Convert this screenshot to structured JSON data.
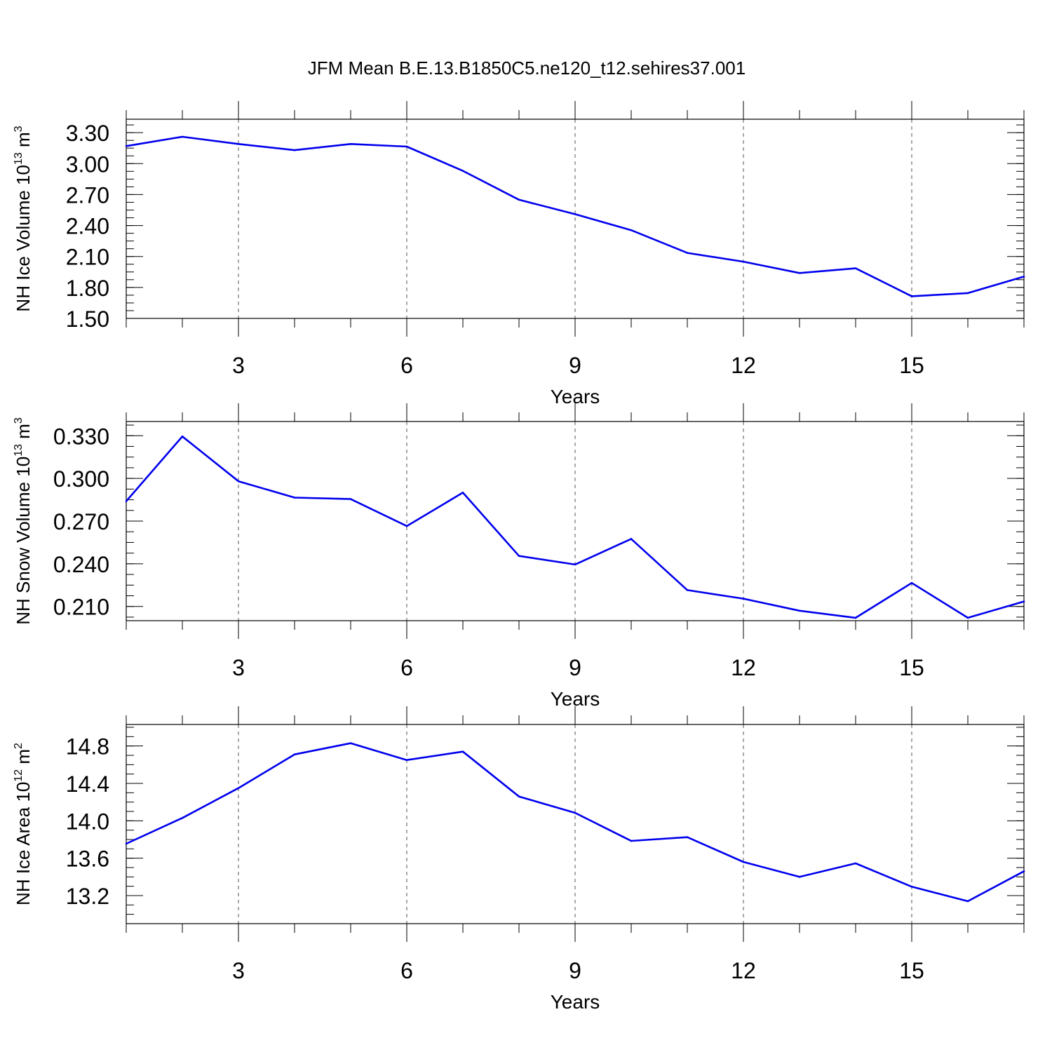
{
  "chart_data": {
    "title": "JFM Mean B.E.13.B1850C5.ne120_t12.sehires37.001",
    "panels": [
      {
        "type": "line",
        "xlabel": "Years",
        "ylabel": {
          "main": "NH Ice Volume 10",
          "exp": "13",
          "unit": " m",
          "unit_exp": "3"
        },
        "xlim": [
          1,
          17
        ],
        "x_ticks": [
          3,
          6,
          9,
          12,
          15
        ],
        "ylim": [
          1.5,
          3.43
        ],
        "y_ticks": [
          "1.50",
          "1.80",
          "2.10",
          "2.40",
          "2.70",
          "3.00",
          "3.30"
        ],
        "y_minor_step": 0.075,
        "grid": "vertical dashed at major x ticks",
        "color": "#0000ee",
        "x": [
          1,
          2,
          3,
          4,
          5,
          6,
          7,
          8,
          9,
          10,
          11,
          12,
          13,
          14,
          15,
          16,
          17
        ],
        "y": [
          3.17,
          3.26,
          3.19,
          3.13,
          3.19,
          3.165,
          2.93,
          2.65,
          2.51,
          2.355,
          2.135,
          2.05,
          1.94,
          1.985,
          1.715,
          1.745,
          1.905
        ]
      },
      {
        "type": "line",
        "xlabel": "Years",
        "ylabel": {
          "main": "NH Snow Volume 10",
          "exp": "13",
          "unit": " m",
          "unit_exp": "3"
        },
        "xlim": [
          1,
          17
        ],
        "x_ticks": [
          3,
          6,
          9,
          12,
          15
        ],
        "ylim": [
          0.2,
          0.34
        ],
        "y_ticks": [
          "0.210",
          "0.240",
          "0.270",
          "0.300",
          "0.330"
        ],
        "y_minor_step": 0.0075,
        "grid": "vertical dashed at major x ticks",
        "color": "#0000ee",
        "x": [
          1,
          2,
          3,
          4,
          5,
          6,
          7,
          8,
          9,
          10,
          11,
          12,
          13,
          14,
          15,
          16,
          17
        ],
        "y": [
          0.284,
          0.3295,
          0.298,
          0.2865,
          0.2855,
          0.2665,
          0.29,
          0.2455,
          0.2395,
          0.2575,
          0.2215,
          0.2155,
          0.207,
          0.202,
          0.2265,
          0.202,
          0.2135
        ]
      },
      {
        "type": "line",
        "xlabel": "Years",
        "ylabel": {
          "main": "NH Ice Area 10",
          "exp": "12",
          "unit": " m",
          "unit_exp": "2"
        },
        "xlim": [
          1,
          17
        ],
        "x_ticks": [
          3,
          6,
          9,
          12,
          15
        ],
        "ylim": [
          12.9,
          15.03
        ],
        "y_ticks": [
          "13.2",
          "13.6",
          "14.0",
          "14.4",
          "14.8"
        ],
        "y_minor_step": 0.1,
        "grid": "vertical dashed at major x ticks",
        "color": "#0000ee",
        "x": [
          1,
          2,
          3,
          4,
          5,
          6,
          7,
          8,
          9,
          10,
          11,
          12,
          13,
          14,
          15,
          16,
          17
        ],
        "y": [
          13.755,
          14.03,
          14.35,
          14.71,
          14.83,
          14.65,
          14.74,
          14.26,
          14.085,
          13.785,
          13.825,
          13.56,
          13.4,
          13.545,
          13.295,
          13.14,
          13.46
        ]
      }
    ]
  }
}
